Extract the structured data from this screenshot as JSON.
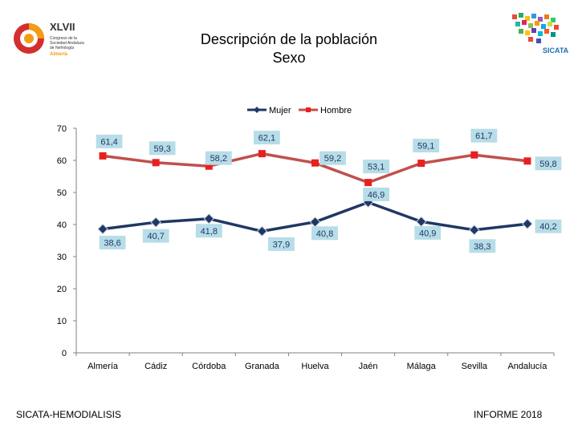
{
  "header": {
    "title_line1": "Descripción de la población",
    "title_line2": "Sexo"
  },
  "logos": {
    "left_number": "XLVII",
    "left_text_lines": [
      "Congreso de la",
      "Sociedad Andaluza",
      "de Nefrología"
    ],
    "left_city": "Almería",
    "right_text": "SICATA"
  },
  "footer": {
    "left": "SICATA-HEMODIALISIS",
    "right": "INFORME 2018"
  },
  "colors": {
    "mujer": "#1f3864",
    "hombre": "#c0504d",
    "marker_hombre": "#e8201f",
    "label_bg": "#b7dde8",
    "label_text_mujer": "#1f3864",
    "label_text_hombre": "#1f3864",
    "grid": "#d9d9d9"
  },
  "chart_data": {
    "type": "line",
    "title": "",
    "xlabel": "",
    "ylabel": "",
    "ylim": [
      0,
      70
    ],
    "yticks": [
      0,
      10,
      20,
      30,
      40,
      50,
      60,
      70
    ],
    "grid": false,
    "legend_position": "top",
    "categories": [
      "Almería",
      "Cádiz",
      "Córdoba",
      "Granada",
      "Huelva",
      "Jaén",
      "Málaga",
      "Sevilla",
      "Andalucía"
    ],
    "series": [
      {
        "name": "Mujer",
        "values": [
          38.6,
          40.7,
          41.8,
          37.9,
          40.8,
          46.9,
          40.9,
          38.3,
          40.2
        ],
        "labels": [
          "38,6",
          "40,7",
          "41,8",
          "37,9",
          "40,8",
          "46,9",
          "40,9",
          "38,3",
          "40,2"
        ]
      },
      {
        "name": "Hombre",
        "values": [
          61.4,
          59.3,
          58.2,
          62.1,
          59.2,
          53.1,
          59.1,
          61.7,
          59.8
        ],
        "labels": [
          "61,4",
          "59,3",
          "58,2",
          "62,1",
          "59,2",
          "53,1",
          "59,1",
          "61,7",
          "59,8"
        ]
      }
    ]
  }
}
